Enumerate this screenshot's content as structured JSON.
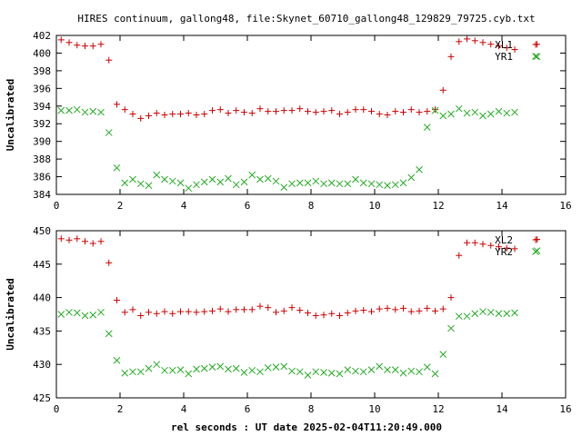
{
  "title": "HIRES continuum, gallong48, file:Skynet_60710_gallong48_129829_79725.cyb.txt",
  "xlabel": "rel seconds : UT date 2025-02-04T11:20:49.000",
  "colors": {
    "xl": "#cc0000",
    "yr": "#22aa22"
  },
  "chart_data": [
    {
      "type": "scatter",
      "ylabel": "Uncalibrated",
      "xlim": [
        0,
        16
      ],
      "ylim": [
        384,
        402
      ],
      "xticks": [
        0,
        2,
        4,
        6,
        8,
        10,
        12,
        14,
        16
      ],
      "yticks": [
        384,
        386,
        388,
        390,
        392,
        394,
        396,
        398,
        400,
        402
      ],
      "legend_position": "top-right",
      "series": [
        {
          "name": "XL1",
          "marker": "plus",
          "x": [
            0.15,
            0.4,
            0.65,
            0.9,
            1.15,
            1.4,
            1.65,
            1.9,
            2.15,
            2.4,
            2.65,
            2.9,
            3.15,
            3.4,
            3.65,
            3.9,
            4.15,
            4.4,
            4.65,
            4.9,
            5.15,
            5.4,
            5.65,
            5.9,
            6.15,
            6.4,
            6.65,
            6.9,
            7.15,
            7.4,
            7.65,
            7.9,
            8.15,
            8.4,
            8.65,
            8.9,
            9.15,
            9.4,
            9.65,
            9.9,
            10.15,
            10.4,
            10.65,
            10.9,
            11.15,
            11.4,
            11.65,
            11.9,
            12.15,
            12.4,
            12.65,
            12.9,
            13.15,
            13.4,
            13.65,
            13.9,
            14.15,
            14.4,
            15.1
          ],
          "y": [
            401.5,
            401.2,
            400.9,
            400.8,
            400.8,
            401.0,
            399.2,
            394.2,
            393.6,
            393.1,
            392.6,
            392.9,
            393.2,
            393.0,
            393.1,
            393.1,
            393.2,
            393.0,
            393.1,
            393.5,
            393.6,
            393.2,
            393.5,
            393.3,
            393.2,
            393.7,
            393.4,
            393.4,
            393.5,
            393.5,
            393.7,
            393.4,
            393.3,
            393.4,
            393.5,
            393.1,
            393.3,
            393.6,
            393.6,
            393.4,
            393.1,
            393.0,
            393.4,
            393.3,
            393.6,
            393.3,
            393.4,
            393.6,
            395.8,
            399.6,
            401.3,
            401.6,
            401.4,
            401.2,
            401.0,
            400.8,
            400.6,
            400.4,
            401.0
          ]
        },
        {
          "name": "YR1",
          "marker": "cross",
          "x": [
            0.15,
            0.4,
            0.65,
            0.9,
            1.15,
            1.4,
            1.65,
            1.9,
            2.15,
            2.4,
            2.65,
            2.9,
            3.15,
            3.4,
            3.65,
            3.9,
            4.15,
            4.4,
            4.65,
            4.9,
            5.15,
            5.4,
            5.65,
            5.9,
            6.15,
            6.4,
            6.65,
            6.9,
            7.15,
            7.4,
            7.65,
            7.9,
            8.15,
            8.4,
            8.65,
            8.9,
            9.15,
            9.4,
            9.65,
            9.9,
            10.15,
            10.4,
            10.65,
            10.9,
            11.15,
            11.4,
            11.65,
            11.9,
            12.15,
            12.4,
            12.65,
            12.9,
            13.15,
            13.4,
            13.65,
            13.9,
            14.15,
            14.4,
            15.1
          ],
          "y": [
            393.5,
            393.5,
            393.6,
            393.3,
            393.4,
            393.3,
            391.0,
            387.0,
            385.3,
            385.7,
            385.2,
            385.0,
            386.2,
            385.7,
            385.5,
            385.3,
            384.7,
            385.1,
            385.4,
            385.7,
            385.4,
            385.8,
            385.1,
            385.4,
            386.2,
            385.7,
            385.8,
            385.5,
            384.8,
            385.2,
            385.3,
            385.3,
            385.5,
            385.2,
            385.3,
            385.2,
            385.2,
            385.7,
            385.3,
            385.2,
            385.1,
            385.0,
            385.1,
            385.3,
            385.9,
            386.8,
            391.6,
            393.5,
            392.9,
            393.1,
            393.7,
            393.2,
            393.3,
            392.9,
            393.1,
            393.4,
            393.2,
            393.3,
            399.6
          ]
        }
      ]
    },
    {
      "type": "scatter",
      "ylabel": "Uncalibrated",
      "xlim": [
        0,
        16
      ],
      "ylim": [
        425,
        450
      ],
      "xticks": [
        0,
        2,
        4,
        6,
        8,
        10,
        12,
        14,
        16
      ],
      "yticks": [
        425,
        430,
        435,
        440,
        445,
        450
      ],
      "legend_position": "top-right",
      "series": [
        {
          "name": "XL2",
          "marker": "plus",
          "x": [
            0.15,
            0.4,
            0.65,
            0.9,
            1.15,
            1.4,
            1.65,
            1.9,
            2.15,
            2.4,
            2.65,
            2.9,
            3.15,
            3.4,
            3.65,
            3.9,
            4.15,
            4.4,
            4.65,
            4.9,
            5.15,
            5.4,
            5.65,
            5.9,
            6.15,
            6.4,
            6.65,
            6.9,
            7.15,
            7.4,
            7.65,
            7.9,
            8.15,
            8.4,
            8.65,
            8.9,
            9.15,
            9.4,
            9.65,
            9.9,
            10.15,
            10.4,
            10.65,
            10.9,
            11.15,
            11.4,
            11.65,
            11.9,
            12.15,
            12.4,
            12.65,
            12.9,
            13.15,
            13.4,
            13.65,
            13.9,
            14.15,
            14.4,
            15.1
          ],
          "y": [
            448.8,
            448.6,
            448.8,
            448.4,
            448.1,
            448.4,
            445.2,
            439.6,
            437.8,
            438.2,
            437.3,
            437.8,
            437.6,
            437.9,
            437.6,
            437.9,
            437.9,
            437.8,
            437.9,
            438.0,
            438.3,
            437.9,
            438.2,
            438.2,
            438.2,
            438.7,
            438.5,
            437.8,
            438.0,
            438.5,
            438.1,
            437.7,
            437.3,
            437.4,
            437.6,
            437.3,
            437.7,
            438.0,
            438.1,
            437.9,
            438.3,
            438.4,
            438.2,
            438.4,
            437.9,
            438.0,
            438.4,
            438.0,
            438.3,
            440.0,
            446.3,
            448.2,
            448.2,
            448.0,
            447.8,
            447.6,
            447.4,
            447.3,
            448.7
          ]
        },
        {
          "name": "YR2",
          "marker": "cross",
          "x": [
            0.15,
            0.4,
            0.65,
            0.9,
            1.15,
            1.4,
            1.65,
            1.9,
            2.15,
            2.4,
            2.65,
            2.9,
            3.15,
            3.4,
            3.65,
            3.9,
            4.15,
            4.4,
            4.65,
            4.9,
            5.15,
            5.4,
            5.65,
            5.9,
            6.15,
            6.4,
            6.65,
            6.9,
            7.15,
            7.4,
            7.65,
            7.9,
            8.15,
            8.4,
            8.65,
            8.9,
            9.15,
            9.4,
            9.65,
            9.9,
            10.15,
            10.4,
            10.65,
            10.9,
            11.15,
            11.4,
            11.65,
            11.9,
            12.15,
            12.4,
            12.65,
            12.9,
            13.15,
            13.4,
            13.65,
            13.9,
            14.15,
            14.4,
            15.1
          ],
          "y": [
            437.5,
            437.8,
            437.7,
            437.3,
            437.4,
            437.8,
            434.6,
            430.6,
            428.7,
            428.9,
            428.9,
            429.4,
            430.0,
            429.1,
            429.1,
            429.2,
            428.6,
            429.3,
            429.4,
            429.6,
            429.7,
            429.3,
            429.4,
            428.8,
            429.1,
            428.9,
            429.5,
            429.6,
            429.7,
            429.0,
            428.9,
            428.4,
            428.9,
            428.8,
            428.7,
            428.6,
            429.2,
            429.0,
            428.9,
            429.2,
            429.7,
            429.2,
            429.2,
            428.7,
            429.0,
            428.9,
            429.6,
            428.6,
            431.5,
            435.4,
            437.2,
            437.2,
            437.6,
            437.9,
            437.8,
            437.6,
            437.6,
            437.7,
            447.0
          ]
        }
      ]
    }
  ]
}
